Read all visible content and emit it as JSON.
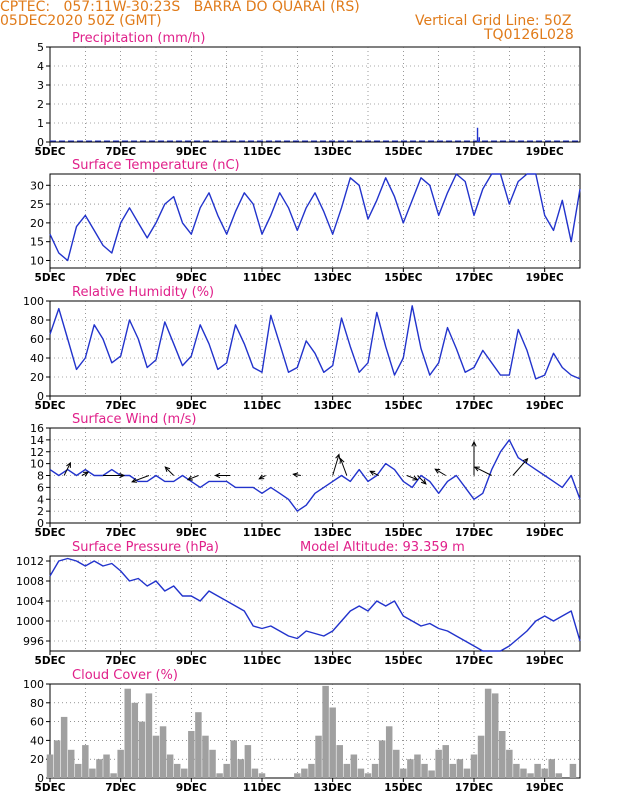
{
  "header": {
    "line1": "CPTEC:   057:11W-30:23S   BARRA DO QUARAI (RS)",
    "line2": "05DEC2020 50Z (GMT)",
    "grid_note": "Vertical Grid Line: 50Z",
    "model_code": "TQ0126L028"
  },
  "colors": {
    "header": "#e07b1a",
    "title": "#e0208a",
    "series": "#2233cc",
    "wind": "#000000",
    "cloud": "#a0a0a0"
  },
  "x_ticks": [
    "5DEC",
    "7DEC",
    "9DEC",
    "11DEC",
    "13DEC",
    "15DEC",
    "17DEC",
    "19DEC"
  ],
  "x_range_days": [
    0,
    15
  ],
  "chart_data": [
    {
      "type": "bar",
      "title": "Precipitation (mm/h)",
      "ylim": [
        0,
        5
      ],
      "yticks": [
        "0",
        "1",
        "2",
        "3",
        "4",
        "5"
      ],
      "x": [
        12.1,
        12.15
      ],
      "values": [
        0.75,
        0.25
      ]
    },
    {
      "type": "line",
      "title": "Surface Temperature (nC)",
      "ylim": [
        8,
        33
      ],
      "yticks": [
        "10",
        "15",
        "20",
        "25",
        "30"
      ],
      "x": [
        0,
        0.25,
        0.5,
        0.75,
        1.0,
        1.25,
        1.5,
        1.75,
        2.0,
        2.25,
        2.5,
        2.75,
        3.0,
        3.25,
        3.5,
        3.75,
        4.0,
        4.25,
        4.5,
        4.75,
        5.0,
        5.25,
        5.5,
        5.75,
        6.0,
        6.25,
        6.5,
        6.75,
        7.0,
        7.25,
        7.5,
        7.75,
        8.0,
        8.25,
        8.5,
        8.75,
        9.0,
        9.25,
        9.5,
        9.75,
        10.0,
        10.25,
        10.5,
        10.75,
        11.0,
        11.25,
        11.5,
        11.75,
        12.0,
        12.25,
        12.5,
        12.75,
        13.0,
        13.25,
        13.5,
        13.75,
        14.0,
        14.25,
        14.5,
        14.75,
        15.0
      ],
      "values": [
        17,
        12,
        10,
        19,
        22,
        18,
        14,
        12,
        20,
        24,
        20,
        16,
        20,
        25,
        27,
        20,
        17,
        24,
        28,
        22,
        17,
        23,
        28,
        25,
        17,
        22,
        28,
        24,
        18,
        24,
        28,
        23,
        17,
        24,
        32,
        30,
        21,
        26,
        32,
        27,
        20,
        26,
        32,
        30,
        22,
        28,
        33,
        31,
        22,
        29,
        33,
        33,
        25,
        31,
        34,
        33,
        22,
        18,
        26,
        15,
        29
      ]
    },
    {
      "type": "line",
      "title": "Relative Humidity (%)",
      "ylim": [
        0,
        100
      ],
      "yticks": [
        "0",
        "20",
        "40",
        "60",
        "80",
        "100"
      ],
      "x": [
        0,
        0.25,
        0.5,
        0.75,
        1.0,
        1.25,
        1.5,
        1.75,
        2.0,
        2.25,
        2.5,
        2.75,
        3.0,
        3.25,
        3.5,
        3.75,
        4.0,
        4.25,
        4.5,
        4.75,
        5.0,
        5.25,
        5.5,
        5.75,
        6.0,
        6.25,
        6.5,
        6.75,
        7.0,
        7.25,
        7.5,
        7.75,
        8.0,
        8.25,
        8.5,
        8.75,
        9.0,
        9.25,
        9.5,
        9.75,
        10.0,
        10.25,
        10.5,
        10.75,
        11.0,
        11.25,
        11.5,
        11.75,
        12.0,
        12.25,
        12.5,
        12.75,
        13.0,
        13.25,
        13.5,
        13.75,
        14.0,
        14.25,
        14.5,
        14.75,
        15.0
      ],
      "values": [
        65,
        92,
        60,
        28,
        40,
        75,
        60,
        35,
        42,
        80,
        60,
        30,
        38,
        78,
        55,
        32,
        42,
        75,
        55,
        28,
        35,
        75,
        55,
        30,
        25,
        85,
        55,
        25,
        30,
        58,
        45,
        25,
        32,
        82,
        52,
        25,
        35,
        88,
        52,
        22,
        40,
        95,
        50,
        22,
        35,
        72,
        50,
        25,
        30,
        48,
        35,
        22,
        22,
        70,
        48,
        18,
        22,
        45,
        30,
        22,
        18
      ]
    },
    {
      "type": "line",
      "title": "Surface Wind (m/s)",
      "ylim": [
        0,
        16
      ],
      "yticks": [
        "0",
        "2",
        "4",
        "6",
        "8",
        "10",
        "12",
        "14",
        "16"
      ],
      "x": [
        0,
        0.25,
        0.5,
        0.75,
        1.0,
        1.25,
        1.5,
        1.75,
        2.0,
        2.25,
        2.5,
        2.75,
        3.0,
        3.25,
        3.5,
        3.75,
        4.0,
        4.25,
        4.5,
        4.75,
        5.0,
        5.25,
        5.5,
        5.75,
        6.0,
        6.25,
        6.5,
        6.75,
        7.0,
        7.25,
        7.5,
        7.75,
        8.0,
        8.25,
        8.5,
        8.75,
        9.0,
        9.25,
        9.5,
        9.75,
        10.0,
        10.25,
        10.5,
        10.75,
        11.0,
        11.25,
        11.5,
        11.75,
        12.0,
        12.25,
        12.5,
        12.75,
        13.0,
        13.25,
        13.5,
        13.75,
        14.0,
        14.25,
        14.5,
        14.75,
        15.0
      ],
      "values": [
        9,
        8,
        9,
        8,
        9,
        8,
        8,
        9,
        8,
        8,
        7,
        7,
        8,
        7,
        7,
        8,
        7,
        6,
        7,
        7,
        7,
        6,
        6,
        6,
        5,
        6,
        5,
        4,
        2,
        3,
        5,
        6,
        7,
        8,
        7,
        9,
        7,
        8,
        10,
        9,
        7,
        6,
        8,
        7,
        5,
        7,
        8,
        6,
        4,
        5,
        9,
        12,
        14,
        11,
        10,
        9,
        8,
        7,
        6,
        8,
        4
      ],
      "arrows": [
        {
          "x": 0.4,
          "u": 1.5,
          "v": 3
        },
        {
          "x": 0.9,
          "u": 1.5,
          "v": 0.8
        },
        {
          "x": 1.5,
          "u": 5.0,
          "v": 0
        },
        {
          "x": 2.8,
          "u": -4.0,
          "v": -1.5
        },
        {
          "x": 3.5,
          "u": -2.0,
          "v": 2.0
        },
        {
          "x": 4.2,
          "u": -2.5,
          "v": -1.0
        },
        {
          "x": 5.1,
          "u": -3.5,
          "v": 0
        },
        {
          "x": 6.1,
          "u": -1.5,
          "v": -0.8
        },
        {
          "x": 7.1,
          "u": -1.8,
          "v": 0.3
        },
        {
          "x": 8.0,
          "u": 1.5,
          "v": 5.0
        },
        {
          "x": 8.4,
          "u": -1.5,
          "v": 4.0
        },
        {
          "x": 9.3,
          "u": -2.0,
          "v": 1.0
        },
        {
          "x": 10.1,
          "u": 2.5,
          "v": -1.0
        },
        {
          "x": 10.4,
          "u": 2.0,
          "v": -2.0
        },
        {
          "x": 11.2,
          "u": -2.5,
          "v": 1.5
        },
        {
          "x": 12.0,
          "u": 0,
          "v": 8
        },
        {
          "x": 12.5,
          "u": -4.0,
          "v": 2.0
        },
        {
          "x": 13.1,
          "u": 3.5,
          "v": 4.0
        }
      ]
    },
    {
      "type": "line",
      "title": "Surface Pressure (hPa)",
      "ylim": [
        994,
        1013
      ],
      "yticks": [
        "996",
        "1000",
        "1004",
        "1008",
        "1012"
      ],
      "annotation": "Model Altitude: 93.359 m",
      "x": [
        0,
        0.25,
        0.5,
        0.75,
        1.0,
        1.25,
        1.5,
        1.75,
        2.0,
        2.25,
        2.5,
        2.75,
        3.0,
        3.25,
        3.5,
        3.75,
        4.0,
        4.25,
        4.5,
        4.75,
        5.0,
        5.25,
        5.5,
        5.75,
        6.0,
        6.25,
        6.5,
        6.75,
        7.0,
        7.25,
        7.5,
        7.75,
        8.0,
        8.25,
        8.5,
        8.75,
        9.0,
        9.25,
        9.5,
        9.75,
        10.0,
        10.25,
        10.5,
        10.75,
        11.0,
        11.25,
        11.5,
        11.75,
        12.0,
        12.25,
        12.5,
        12.75,
        13.0,
        13.25,
        13.5,
        13.75,
        14.0,
        14.25,
        14.5,
        14.75,
        15.0
      ],
      "values": [
        1009,
        1012,
        1012.5,
        1012,
        1011,
        1012,
        1011,
        1011.5,
        1010,
        1008,
        1008.5,
        1007,
        1008,
        1006,
        1007,
        1005,
        1005,
        1004,
        1006,
        1005,
        1004,
        1003,
        1002,
        999,
        998.5,
        999,
        998,
        997,
        996.5,
        998,
        997.5,
        997,
        998,
        1000,
        1002,
        1003,
        1002,
        1004,
        1003,
        1004,
        1001,
        1000,
        999,
        999.5,
        998.5,
        998,
        997,
        996,
        995,
        994,
        994,
        994,
        995,
        996.5,
        998,
        1000,
        1001,
        1000,
        1001,
        1002,
        996
      ]
    },
    {
      "type": "bar",
      "title": "Cloud Cover (%)",
      "ylim": [
        0,
        100
      ],
      "yticks": [
        "0",
        "20",
        "40",
        "60",
        "80",
        "100"
      ],
      "x": [
        0.0,
        0.2,
        0.4,
        0.6,
        0.8,
        1.0,
        1.2,
        1.4,
        1.6,
        1.8,
        2.0,
        2.2,
        2.4,
        2.6,
        2.8,
        3.0,
        3.2,
        3.4,
        3.6,
        3.8,
        4.0,
        4.2,
        4.4,
        4.6,
        4.8,
        5.0,
        5.2,
        5.4,
        5.6,
        5.8,
        6.0,
        6.2,
        6.4,
        6.6,
        6.8,
        7.0,
        7.2,
        7.4,
        7.6,
        7.8,
        8.0,
        8.2,
        8.4,
        8.6,
        8.8,
        9.0,
        9.2,
        9.4,
        9.6,
        9.8,
        10.0,
        10.2,
        10.4,
        10.6,
        10.8,
        11.0,
        11.2,
        11.4,
        11.6,
        11.8,
        12.0,
        12.2,
        12.4,
        12.6,
        12.8,
        13.0,
        13.2,
        13.4,
        13.6,
        13.8,
        14.0,
        14.2,
        14.4,
        14.6,
        14.8
      ],
      "values": [
        25,
        40,
        65,
        30,
        15,
        35,
        10,
        20,
        25,
        5,
        30,
        95,
        80,
        60,
        90,
        45,
        55,
        25,
        15,
        10,
        50,
        70,
        45,
        30,
        5,
        15,
        40,
        20,
        35,
        10,
        5,
        0,
        0,
        0,
        0,
        5,
        10,
        15,
        45,
        98,
        75,
        35,
        15,
        25,
        10,
        5,
        15,
        40,
        55,
        30,
        10,
        20,
        25,
        15,
        8,
        30,
        35,
        15,
        20,
        10,
        25,
        45,
        95,
        90,
        50,
        30,
        15,
        10,
        5,
        15,
        10,
        20,
        5,
        0,
        15
      ]
    }
  ]
}
